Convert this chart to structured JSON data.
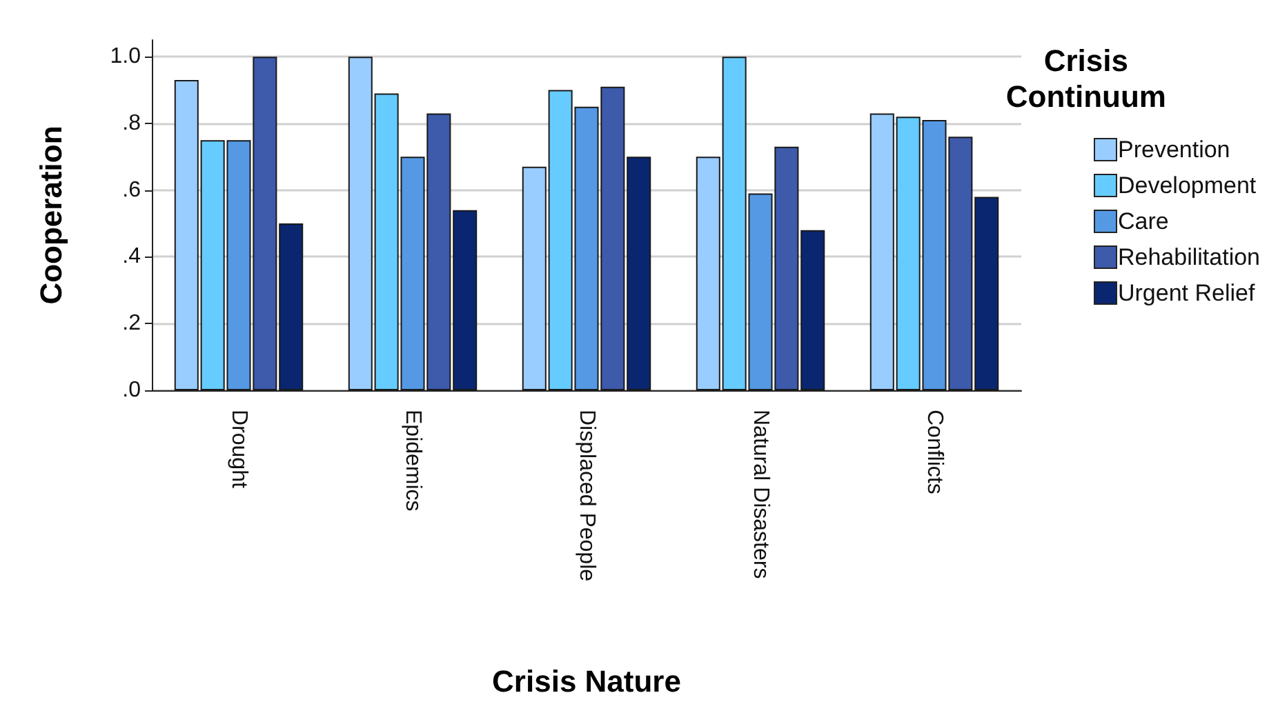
{
  "chart_data": {
    "type": "bar",
    "xlabel": "Crisis Nature",
    "ylabel": "Cooperation",
    "legend_title": "Crisis\nContinuum",
    "categories": [
      "Drought",
      "Epidemics",
      "Displaced People",
      "Natural Disasters",
      "Conflicts"
    ],
    "series": [
      {
        "name": "Prevention",
        "color": "#99ccff",
        "values": [
          0.93,
          1.0,
          0.67,
          0.7,
          0.83
        ]
      },
      {
        "name": "Development",
        "color": "#66ccff",
        "values": [
          0.75,
          0.89,
          0.9,
          1.0,
          0.82
        ]
      },
      {
        "name": "Care",
        "color": "#5599e5",
        "values": [
          0.75,
          0.7,
          0.85,
          0.59,
          0.81
        ]
      },
      {
        "name": "Rehabilitation",
        "color": "#3d5aab",
        "values": [
          1.0,
          0.83,
          0.91,
          0.73,
          0.76
        ]
      },
      {
        "name": "Urgent Relief",
        "color": "#0a2670",
        "values": [
          0.5,
          0.54,
          0.7,
          0.48,
          0.58
        ]
      }
    ],
    "ylim": [
      0,
      1.05
    ],
    "yticks": [
      {
        "value": 0,
        "label": ".0"
      },
      {
        "value": 0.2,
        "label": ".2"
      },
      {
        "value": 0.4,
        "label": ".4"
      },
      {
        "value": 0.6,
        "label": ".6"
      },
      {
        "value": 0.8,
        "label": ".8"
      },
      {
        "value": 1.0,
        "label": "1.0"
      }
    ],
    "grid": "y",
    "legend": "right"
  }
}
